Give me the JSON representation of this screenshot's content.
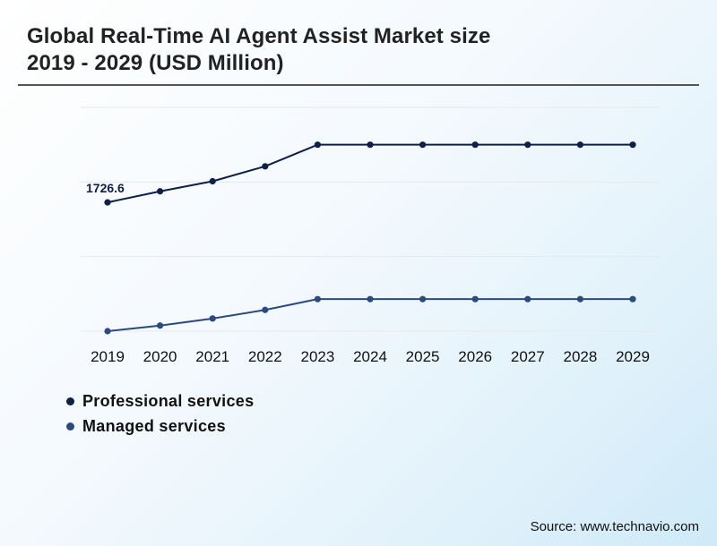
{
  "title": {
    "line1": "Global Real-Time AI Agent Assist Market size",
    "line2": "2019 - 2029 (USD Million)"
  },
  "source": "Source: www.technavio.com",
  "colors": {
    "professional": "#0f1f45",
    "managed": "#2c4a7c",
    "grid": "#e6e9ec"
  },
  "chart_data": {
    "type": "line",
    "title": "Global Real-Time AI Agent Assist Market size 2019 - 2029 (USD Million)",
    "x": [
      "2019",
      "2020",
      "2021",
      "2022",
      "2023",
      "2024",
      "2025",
      "2026",
      "2027",
      "2028",
      "2029"
    ],
    "ylim": [
      0,
      3000
    ],
    "grid": true,
    "legend_position": "bottom-left",
    "series": [
      {
        "name": "Professional services",
        "values": [
          1726.6,
          1875,
          2010,
          2210,
          2500,
          2500,
          2500,
          2500,
          2500,
          2500,
          2500
        ],
        "labels": [
          "1726.6",
          "",
          "",
          "",
          "",
          "",
          "",
          "",
          "",
          "",
          ""
        ]
      },
      {
        "name": "Managed services",
        "values": [
          0,
          75,
          170,
          285,
          430,
          430,
          430,
          430,
          430,
          430,
          430
        ],
        "labels": [
          "",
          "",
          "",
          "",
          "",
          "",
          "",
          "",
          "",
          "",
          ""
        ]
      }
    ]
  }
}
